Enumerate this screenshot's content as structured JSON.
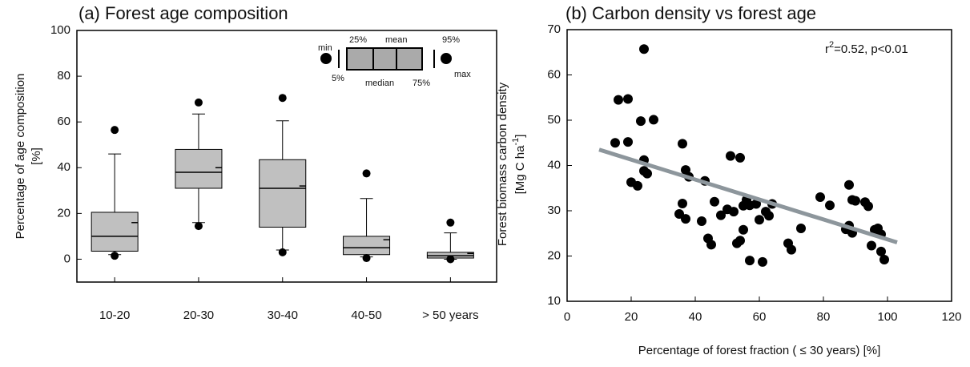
{
  "chart_data": [
    {
      "type": "box",
      "title": "(a) Forest age composition",
      "y_label": [
        "Percentage of age composition",
        "[%]"
      ],
      "categories": [
        "10-20",
        "20-30",
        "30-40",
        "40-50",
        "> 50 years"
      ],
      "min": [
        1.5,
        14.5,
        3,
        0.5,
        0
      ],
      "p5": [
        2,
        16,
        4,
        1,
        0
      ],
      "p25": [
        3.5,
        31,
        14,
        2,
        0.5
      ],
      "median": [
        10,
        38,
        31,
        5,
        1.5
      ],
      "mean": [
        16,
        40,
        32,
        8.5,
        2.5
      ],
      "p75": [
        20.5,
        48,
        43.5,
        10,
        3
      ],
      "p95": [
        46,
        63.5,
        60.5,
        26.5,
        11.5
      ],
      "max": [
        56.5,
        68.5,
        70.5,
        37.5,
        16
      ],
      "color": "#c0c0c0",
      "ylim": [
        -10,
        100
      ],
      "yticks": [
        0,
        20,
        40,
        60,
        80,
        100
      ],
      "key_labels": {
        "min": "min",
        "p5": "5%",
        "p25": "25%",
        "mean": "mean",
        "median": "median",
        "p75": "75%",
        "p95": "95%",
        "max": "max"
      }
    },
    {
      "type": "scatter",
      "title": "(b) Carbon density vs forest age",
      "x_label": "Percentage of forest fraction ( ≤ 30 years) [%]",
      "y_label": "Forest biomass carbon density",
      "y_unit": {
        "base": "[Mg C ha",
        "sup": "-1",
        "end": "]"
      },
      "annotation": {
        "base": "r",
        "sup": "2",
        "rest": "=0.52, p<0.01"
      },
      "x": [
        15,
        16,
        19,
        19,
        20,
        22,
        23,
        24,
        24,
        25,
        24,
        27,
        36,
        36,
        35,
        37,
        37,
        38,
        42,
        43,
        44,
        45,
        46,
        48,
        50,
        51,
        52,
        54,
        53,
        54,
        55,
        55,
        56,
        57,
        57,
        59,
        60,
        61,
        62,
        63,
        64,
        69,
        70,
        73,
        79,
        82,
        87,
        88,
        88,
        89,
        89,
        90,
        93,
        94,
        95,
        96,
        98,
        98,
        99,
        97
      ],
      "y": [
        45,
        54.5,
        54.7,
        45.2,
        36.3,
        35.5,
        49.8,
        38.8,
        41.2,
        38.2,
        65.7,
        50.1,
        44.8,
        31.6,
        29.3,
        28.2,
        39,
        37.5,
        27.7,
        36.6,
        23.9,
        22.5,
        32,
        29,
        30.3,
        42.1,
        29.8,
        41.7,
        22.8,
        23.4,
        25.8,
        31.1,
        32.4,
        31.2,
        19,
        31.5,
        28,
        18.7,
        29.8,
        28.9,
        31.5,
        22.8,
        21.4,
        26.1,
        33,
        31.2,
        25.9,
        35.7,
        26.7,
        25.1,
        32.4,
        32.2,
        31.9,
        31,
        22.3,
        25.8,
        24.8,
        21,
        19.2,
        26.1
      ],
      "color": "#000000",
      "trend_line": {
        "x": [
          10,
          103
        ],
        "y": [
          43.5,
          23
        ],
        "color": "#8d969c"
      },
      "xlim": [
        0,
        120
      ],
      "xticks": [
        0,
        20,
        40,
        60,
        80,
        100,
        120
      ],
      "ylim": [
        10,
        70
      ],
      "yticks": [
        10,
        20,
        30,
        40,
        50,
        60,
        70
      ]
    }
  ]
}
